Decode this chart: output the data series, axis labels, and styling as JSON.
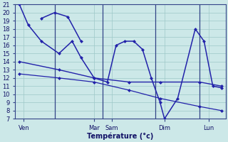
{
  "bg_color": "#cce8e8",
  "grid_color": "#9dc8c8",
  "line_color": "#2222aa",
  "xlabel": "Température (°c)",
  "ylim": [
    7,
    21
  ],
  "xlim": [
    0,
    24
  ],
  "yticks": [
    7,
    8,
    9,
    10,
    11,
    12,
    13,
    14,
    15,
    16,
    17,
    18,
    19,
    20,
    21
  ],
  "xtick_positions": [
    1,
    9,
    11,
    17,
    22
  ],
  "xtick_labels": [
    "Ven",
    "Mar",
    "Sam",
    "Dim",
    "Lun"
  ],
  "vline_positions": [
    4.5,
    10.0,
    16.0,
    21.0
  ],
  "line_wave": {
    "x": [
      0.5,
      1.5,
      3.0,
      5.0,
      6.5,
      7.5,
      9.0,
      10.5,
      11.5,
      12.5,
      13.5,
      14.5,
      15.5,
      16.5,
      17.0,
      18.5,
      20.5,
      21.5,
      22.5,
      23.5
    ],
    "y": [
      21,
      18.5,
      16.5,
      15,
      16.5,
      14.5,
      12,
      11.5,
      16,
      16.5,
      16.5,
      15.5,
      12,
      9,
      7,
      9.5,
      18,
      16.5,
      11,
      10.8
    ]
  },
  "line_peak": {
    "x": [
      3.0,
      4.5,
      6.0,
      7.5
    ],
    "y": [
      19.3,
      20,
      19.5,
      16.5
    ]
  },
  "line_flat": {
    "x": [
      0.5,
      5.0,
      9.0,
      13.0,
      16.5,
      21.0,
      23.5
    ],
    "y": [
      14,
      13,
      12,
      11.5,
      11.5,
      11.5,
      11
    ]
  },
  "line_decline": {
    "x": [
      0.5,
      5.0,
      9.0,
      13.0,
      16.5,
      21.0,
      23.5
    ],
    "y": [
      12.5,
      12,
      11.5,
      10.5,
      9.5,
      8.5,
      8.0
    ]
  }
}
